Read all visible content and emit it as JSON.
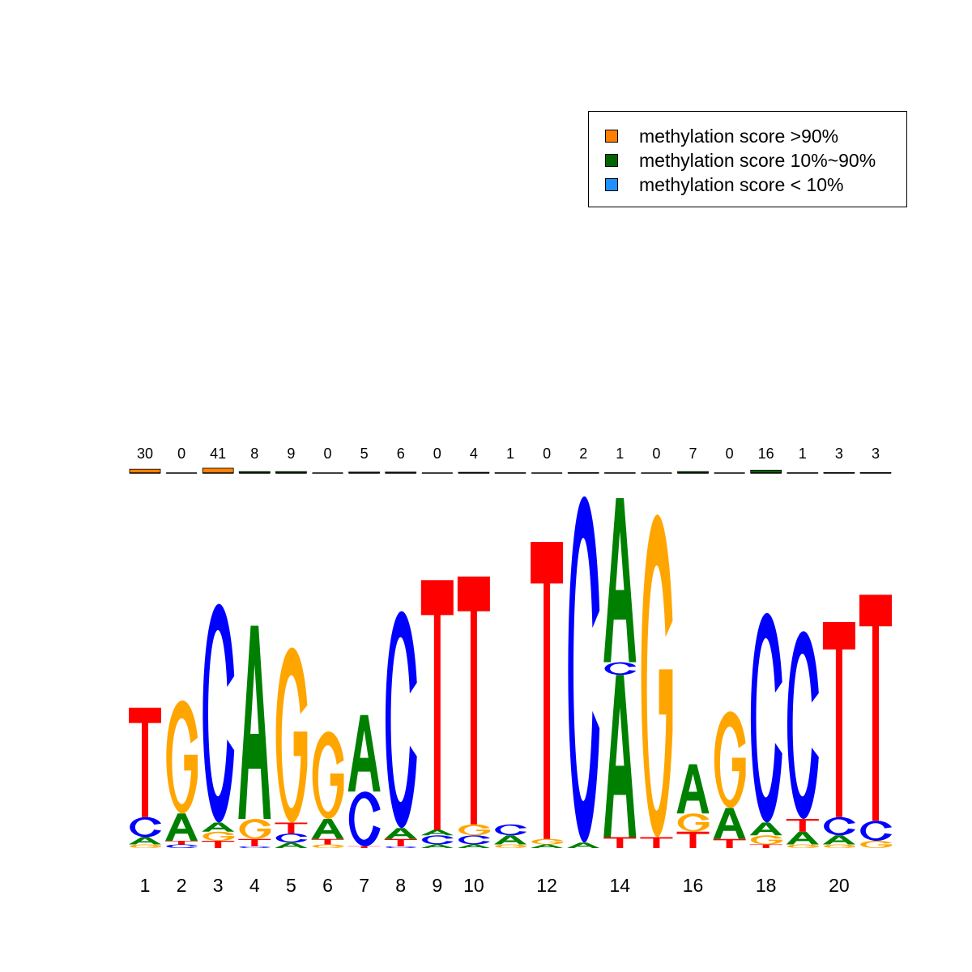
{
  "legend": {
    "items": [
      {
        "label": "methylation score >90%",
        "color": "#FF7F00"
      },
      {
        "label": "methylation score 10%~90%",
        "color": "#006400"
      },
      {
        "label": "methylation score < 10%",
        "color": "#1E90FF"
      }
    ]
  },
  "base_colors": {
    "A": "#008000",
    "C": "#0000FF",
    "G": "#FFA500",
    "T": "#FF0000"
  },
  "chart_data": {
    "type": "sequence-logo",
    "positions": [
      1,
      2,
      3,
      4,
      5,
      6,
      7,
      8,
      9,
      10,
      11,
      12,
      13,
      14,
      15,
      16,
      17,
      18,
      19,
      20,
      21
    ],
    "x_tick_labels": [
      "1",
      "2",
      "3",
      "4",
      "5",
      "6",
      "7",
      "8",
      "9",
      "10",
      "",
      "12",
      "",
      "14",
      "",
      "16",
      "",
      "18",
      "",
      "20",
      ""
    ],
    "methylation_counts": [
      "30",
      "0",
      "41",
      "8",
      "9",
      "0",
      "5",
      "6",
      "0",
      "4",
      "1",
      "0",
      "2",
      "1",
      "0",
      "7",
      "0",
      "16",
      "1",
      "3",
      "3"
    ],
    "methylation_bars": [
      {
        "high": 0.8,
        "mid": 0.0,
        "low": 0.0
      },
      {
        "high": 0.0,
        "mid": 0.0,
        "low": 0.0
      },
      {
        "high": 1.0,
        "mid": 0.0,
        "low": 0.0
      },
      {
        "high": 0.0,
        "mid": 0.3,
        "low": 0.0
      },
      {
        "high": 0.0,
        "mid": 0.3,
        "low": 0.0
      },
      {
        "high": 0.0,
        "mid": 0.0,
        "low": 0.0
      },
      {
        "high": 0.0,
        "mid": 0.2,
        "low": 0.0
      },
      {
        "high": 0.0,
        "mid": 0.2,
        "low": 0.0
      },
      {
        "high": 0.0,
        "mid": 0.0,
        "low": 0.0
      },
      {
        "high": 0.0,
        "mid": 0.15,
        "low": 0.0
      },
      {
        "high": 0.0,
        "mid": 0.05,
        "low": 0.0
      },
      {
        "high": 0.0,
        "mid": 0.0,
        "low": 0.0
      },
      {
        "high": 0.0,
        "mid": 0.08,
        "low": 0.0
      },
      {
        "high": 0.0,
        "mid": 0.05,
        "low": 0.0
      },
      {
        "high": 0.0,
        "mid": 0.0,
        "low": 0.0
      },
      {
        "high": 0.0,
        "mid": 0.3,
        "low": 0.0
      },
      {
        "high": 0.0,
        "mid": 0.0,
        "low": 0.0
      },
      {
        "high": 0.0,
        "mid": 0.6,
        "low": 0.0
      },
      {
        "high": 0.0,
        "mid": 0.05,
        "low": 0.0
      },
      {
        "high": 0.0,
        "mid": 0.1,
        "low": 0.0
      },
      {
        "high": 0.0,
        "mid": 0.1,
        "low": 0.0
      }
    ],
    "ylim": [
      0,
      2
    ],
    "stacks": [
      [
        [
          "G",
          0.02
        ],
        [
          "A",
          0.04
        ],
        [
          "C",
          0.11
        ],
        [
          "T",
          0.6
        ]
      ],
      [
        [
          "C",
          0.02
        ],
        [
          "T",
          0.02
        ],
        [
          "A",
          0.15
        ],
        [
          "G",
          0.62
        ]
      ],
      [
        [
          "T",
          0.04
        ],
        [
          "G",
          0.05
        ],
        [
          "A",
          0.05
        ],
        [
          "C",
          1.2
        ]
      ],
      [
        [
          "C",
          0.01
        ],
        [
          "T",
          0.04
        ],
        [
          "G",
          0.11
        ],
        [
          "A",
          1.06
        ]
      ],
      [
        [
          "A",
          0.03
        ],
        [
          "C",
          0.05
        ],
        [
          "T",
          0.06
        ],
        [
          "G",
          0.96
        ]
      ],
      [
        [
          "G",
          0.02
        ],
        [
          "T",
          0.03
        ],
        [
          "A",
          0.11
        ],
        [
          "G",
          0.48
        ]
      ],
      [
        [
          "T",
          0.01
        ],
        [
          "C",
          0.3
        ],
        [
          "A",
          0.42
        ]
      ],
      [
        [
          "C",
          0.01
        ],
        [
          "T",
          0.04
        ],
        [
          "A",
          0.06
        ],
        [
          "C",
          1.19
        ]
      ],
      [
        [
          "A",
          0.02
        ],
        [
          "C",
          0.05
        ],
        [
          "A",
          0.03
        ],
        [
          "T",
          1.37
        ]
      ],
      [
        [
          "A",
          0.02
        ],
        [
          "C",
          0.05
        ],
        [
          "G",
          0.06
        ],
        [
          "T",
          1.36
        ]
      ],
      [
        [
          "G",
          0.02
        ],
        [
          "A",
          0.05
        ],
        [
          "C",
          0.06
        ]
      ],
      [
        [
          "A",
          0.02
        ],
        [
          "G",
          0.03
        ],
        [
          "T",
          1.63
        ]
      ],
      [
        [
          "A",
          0.03
        ],
        [
          "C",
          1.9
        ]
      ],
      [
        [
          "T",
          0.06
        ],
        [
          "A",
          0.89
        ],
        [
          "C",
          0.07
        ],
        [
          "A",
          0.9
        ]
      ],
      [
        [
          "T",
          0.06
        ],
        [
          "G",
          1.77
        ]
      ],
      [
        [
          "T",
          0.09
        ],
        [
          "G",
          0.1
        ],
        [
          "A",
          0.27
        ]
      ],
      [
        [
          "T",
          0.05
        ],
        [
          "A",
          0.17
        ],
        [
          "G",
          0.53
        ]
      ],
      [
        [
          "T",
          0.02
        ],
        [
          "G",
          0.05
        ],
        [
          "A",
          0.07
        ],
        [
          "C",
          1.15
        ]
      ],
      [
        [
          "G",
          0.02
        ],
        [
          "A",
          0.07
        ],
        [
          "T",
          0.07
        ],
        [
          "C",
          1.03
        ]
      ],
      [
        [
          "G",
          0.02
        ],
        [
          "A",
          0.05
        ],
        [
          "C",
          0.1
        ],
        [
          "T",
          1.07
        ]
      ],
      [
        [
          "G",
          0.04
        ],
        [
          "C",
          0.11
        ],
        [
          "T",
          1.24
        ]
      ]
    ]
  }
}
